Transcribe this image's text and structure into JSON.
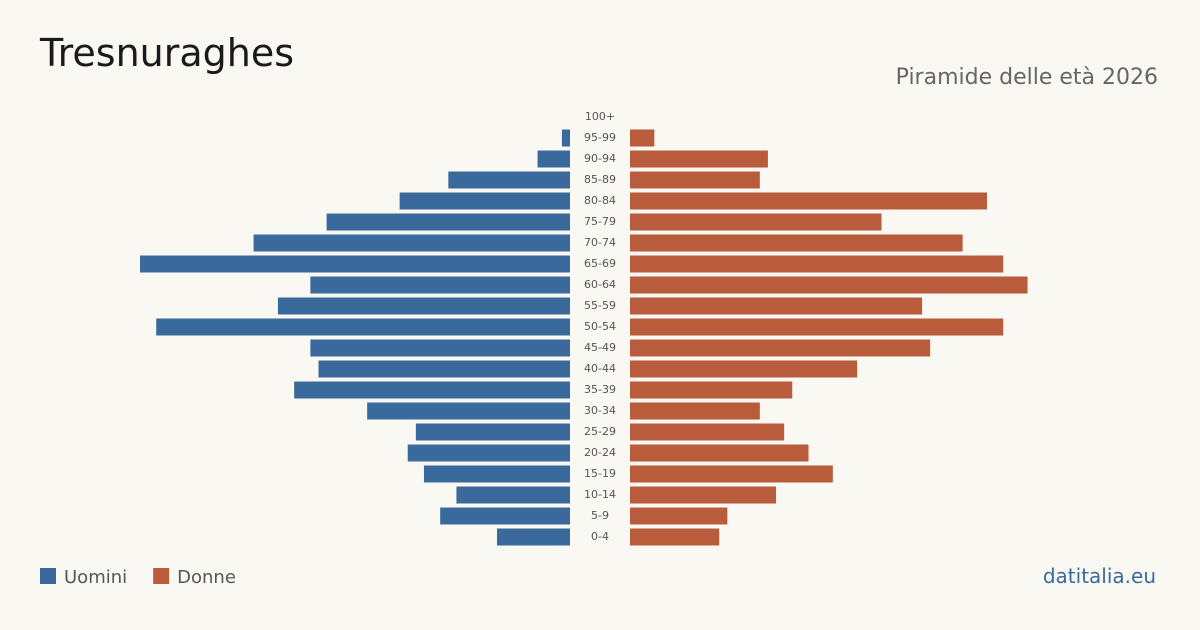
{
  "chart_data": {
    "type": "pyramid",
    "title": "Tresnuraghes",
    "subtitle": "Piramide delle età 2026",
    "source": "datitalia.eu",
    "categories": [
      "100+",
      "95-99",
      "90-94",
      "85-89",
      "80-84",
      "75-79",
      "70-74",
      "65-69",
      "60-64",
      "55-59",
      "50-54",
      "45-49",
      "40-44",
      "35-39",
      "30-34",
      "25-29",
      "20-24",
      "15-19",
      "10-14",
      "5-9",
      "0-4"
    ],
    "series": [
      {
        "name": "Uomini",
        "color": "#3a6a9c",
        "values": [
          0,
          1,
          4,
          15,
          21,
          30,
          39,
          53,
          32,
          36,
          51,
          32,
          31,
          34,
          25,
          19,
          20,
          18,
          14,
          16,
          9
        ]
      },
      {
        "name": "Donne",
        "color": "#b85c3c",
        "values": [
          0,
          3,
          17,
          16,
          44,
          31,
          41,
          46,
          49,
          36,
          46,
          37,
          28,
          20,
          16,
          19,
          22,
          25,
          18,
          12,
          11
        ]
      }
    ]
  }
}
